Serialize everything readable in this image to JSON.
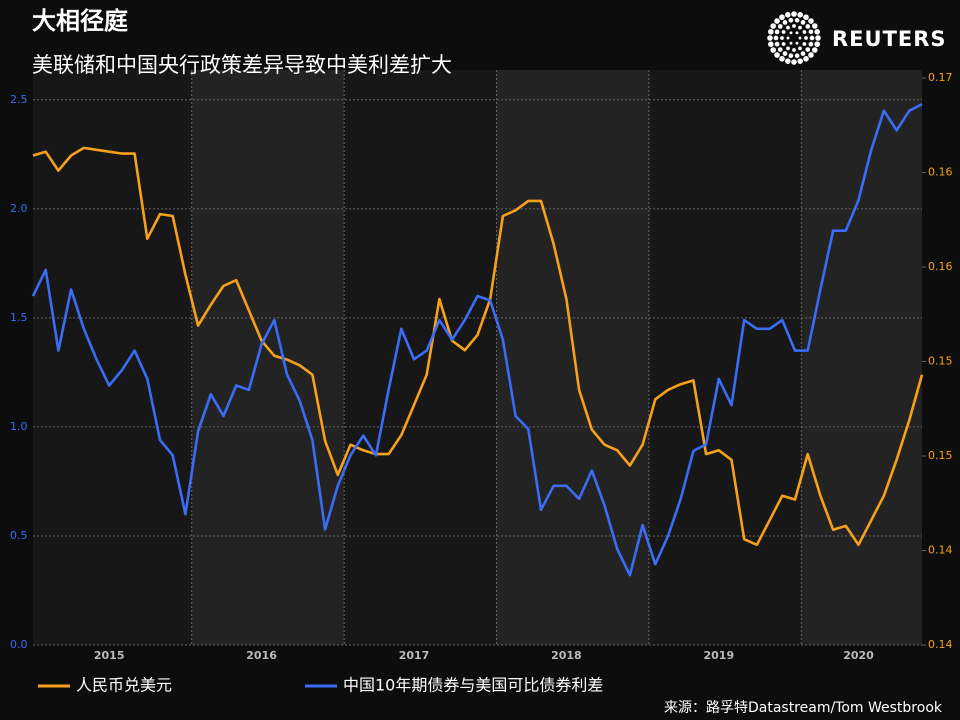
{
  "chart_data": {
    "type": "line",
    "title": "大相径庭",
    "subtitle": "美联储和中国央行政策差异导致中美利差扩大",
    "brand": "REUTERS",
    "source": "来源：路孚特Datastream/Tom Westbrook",
    "categories": [
      null,
      null,
      null,
      null,
      null,
      null,
      "2015",
      null,
      null,
      null,
      null,
      null,
      null,
      null,
      null,
      null,
      null,
      null,
      "2016",
      null,
      null,
      null,
      null,
      null,
      null,
      null,
      null,
      null,
      null,
      null,
      "2017",
      null,
      null,
      null,
      null,
      null,
      null,
      null,
      null,
      null,
      null,
      null,
      "2018",
      null,
      null,
      null,
      null,
      null,
      null,
      null,
      null,
      null,
      null,
      null,
      "2019",
      null,
      null,
      null,
      null,
      null,
      null,
      null,
      null,
      null,
      null,
      "2020",
      null,
      null,
      null,
      null,
      null
    ],
    "series": [
      {
        "name": "人民币兑美元",
        "color": "#f7a11a",
        "axis": "y2",
        "values": [
          0.1609,
          0.1611,
          0.1601,
          0.1609,
          0.1613,
          0.1612,
          0.1611,
          0.161,
          0.161,
          0.1565,
          0.1578,
          0.1577,
          0.1546,
          0.1519,
          0.153,
          0.154,
          0.1543,
          0.1527,
          0.1511,
          0.1503,
          0.1501,
          0.1498,
          0.1493,
          0.1458,
          0.144,
          0.1456,
          0.1453,
          0.1451,
          0.1451,
          0.1461,
          0.1477,
          0.1493,
          0.1533,
          0.1511,
          0.1506,
          0.1514,
          0.1533,
          0.1577,
          0.158,
          0.1585,
          0.1585,
          0.1562,
          0.1533,
          0.1485,
          0.1464,
          0.1456,
          0.1453,
          0.1445,
          0.1456,
          0.148,
          0.1485,
          0.1488,
          0.149,
          0.1451,
          0.1453,
          0.1448,
          0.1406,
          0.1403,
          0.1416,
          0.1429,
          0.1427,
          0.1451,
          0.1429,
          0.1411,
          0.1413,
          0.1403,
          0.1416,
          0.1429,
          0.1448,
          0.1469,
          0.1493
        ]
      },
      {
        "name": "中国10年期债券与美国可比债券利差",
        "color": "#3b6cf6",
        "values": [
          1.6,
          1.72,
          1.35,
          1.63,
          1.45,
          1.31,
          1.19,
          1.26,
          1.35,
          1.22,
          0.94,
          0.87,
          0.6,
          0.98,
          1.15,
          1.05,
          1.19,
          1.17,
          1.38,
          1.49,
          1.24,
          1.12,
          0.94,
          0.53,
          0.73,
          0.87,
          0.96,
          0.87,
          1.17,
          1.45,
          1.31,
          1.35,
          1.49,
          1.4,
          1.49,
          1.6,
          1.58,
          1.4,
          1.05,
          0.99,
          0.62,
          0.73,
          0.73,
          0.67,
          0.8,
          0.64,
          0.44,
          0.32,
          0.55,
          0.37,
          0.5,
          0.67,
          0.89,
          0.92,
          1.22,
          1.1,
          1.49,
          1.45,
          1.45,
          1.49,
          1.35,
          1.35,
          1.63,
          1.9,
          1.9,
          2.04,
          2.27,
          2.45,
          2.36,
          2.45,
          2.48
        ]
      }
    ],
    "ylim": [
      0,
      2.6
    ],
    "yticks": [
      {
        "value": 0,
        "label": "0.0"
      },
      0.5,
      {
        "value": 1,
        "label": "1.0"
      },
      1.5,
      {
        "value": 2,
        "label": "2.0"
      },
      2.5
    ],
    "y2lim": [
      0.135,
      0.165
    ],
    "y2ticks": [
      {
        "value": 0.135,
        "label": "0.14"
      },
      {
        "value": 0.14,
        "label": "0.14"
      },
      {
        "value": 0.145,
        "label": "0.15"
      },
      {
        "value": 0.15,
        "label": "0.15"
      },
      {
        "value": 0.155,
        "label": "0.16"
      },
      {
        "value": 0.16,
        "label": "0.16"
      },
      {
        "value": 0.165,
        "label": "0.17"
      }
    ],
    "grid": true
  }
}
